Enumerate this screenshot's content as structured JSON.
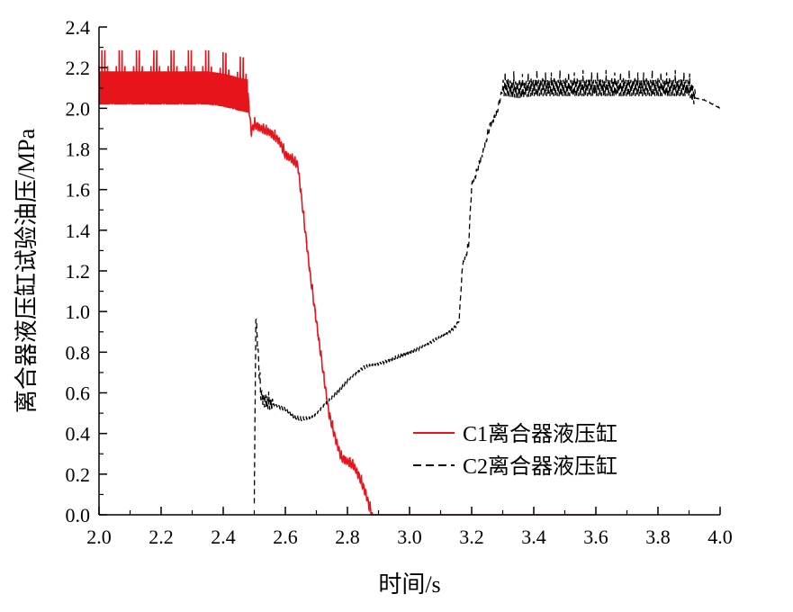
{
  "chart_data": {
    "type": "line",
    "title": "",
    "xlabel": "时间/s",
    "ylabel": "离合器液压缸试验油压/MPa",
    "xlim": [
      2.0,
      4.0
    ],
    "ylim": [
      0.0,
      2.4
    ],
    "xticks": [
      "2.0",
      "2.2",
      "2.4",
      "2.6",
      "2.8",
      "3.0",
      "3.2",
      "3.4",
      "3.6",
      "3.8",
      "4.0"
    ],
    "yticks": [
      "0.0",
      "0.2",
      "0.4",
      "0.6",
      "0.8",
      "1.0",
      "1.2",
      "1.4",
      "1.6",
      "1.8",
      "2.0",
      "2.2",
      "2.4"
    ],
    "grid": false,
    "legend_position": "right-middle",
    "series": [
      {
        "name": "C1离合器液压缸",
        "color": "#e8141c",
        "dash": "solid",
        "x": [
          2.0,
          2.02,
          2.05,
          2.1,
          2.15,
          2.2,
          2.25,
          2.3,
          2.35,
          2.4,
          2.45,
          2.48,
          2.49,
          2.5,
          2.52,
          2.55,
          2.58,
          2.6,
          2.62,
          2.64,
          2.66,
          2.68,
          2.7,
          2.72,
          2.74,
          2.76,
          2.78,
          2.8,
          2.82,
          2.84,
          2.86,
          2.87,
          2.88,
          2.9,
          3.0,
          3.2,
          3.4,
          3.6
        ],
        "y": [
          2.1,
          2.1,
          2.1,
          2.1,
          2.1,
          2.1,
          2.1,
          2.1,
          2.1,
          2.09,
          2.07,
          2.06,
          1.88,
          1.92,
          1.9,
          1.88,
          1.84,
          1.77,
          1.75,
          1.72,
          1.45,
          1.18,
          0.95,
          0.72,
          0.5,
          0.38,
          0.28,
          0.26,
          0.24,
          0.18,
          0.1,
          0.04,
          0.0,
          0.0,
          0.0,
          0.0,
          0.0,
          0.0
        ]
      },
      {
        "name": "C2离合器液压缸",
        "color": "#000000",
        "dash": "dashed",
        "x": [
          2.5,
          2.505,
          2.51,
          2.52,
          2.53,
          2.56,
          2.6,
          2.63,
          2.65,
          2.68,
          2.7,
          2.72,
          2.75,
          2.8,
          2.85,
          2.9,
          2.95,
          3.0,
          3.05,
          3.1,
          3.13,
          3.15,
          3.16,
          3.17,
          3.19,
          3.2,
          3.22,
          3.24,
          3.26,
          3.28,
          3.3,
          3.31,
          3.35,
          3.4,
          3.5,
          3.6,
          3.7,
          3.8,
          3.9,
          3.92,
          3.95,
          4.0
        ],
        "y": [
          0.02,
          0.98,
          0.85,
          0.6,
          0.56,
          0.54,
          0.52,
          0.48,
          0.47,
          0.48,
          0.5,
          0.53,
          0.57,
          0.66,
          0.72,
          0.74,
          0.77,
          0.8,
          0.83,
          0.87,
          0.9,
          0.93,
          0.96,
          1.22,
          1.32,
          1.62,
          1.7,
          1.8,
          1.92,
          1.97,
          2.1,
          2.1,
          2.09,
          2.1,
          2.1,
          2.1,
          2.1,
          2.1,
          2.1,
          2.05,
          2.04,
          2.0
        ]
      }
    ]
  }
}
